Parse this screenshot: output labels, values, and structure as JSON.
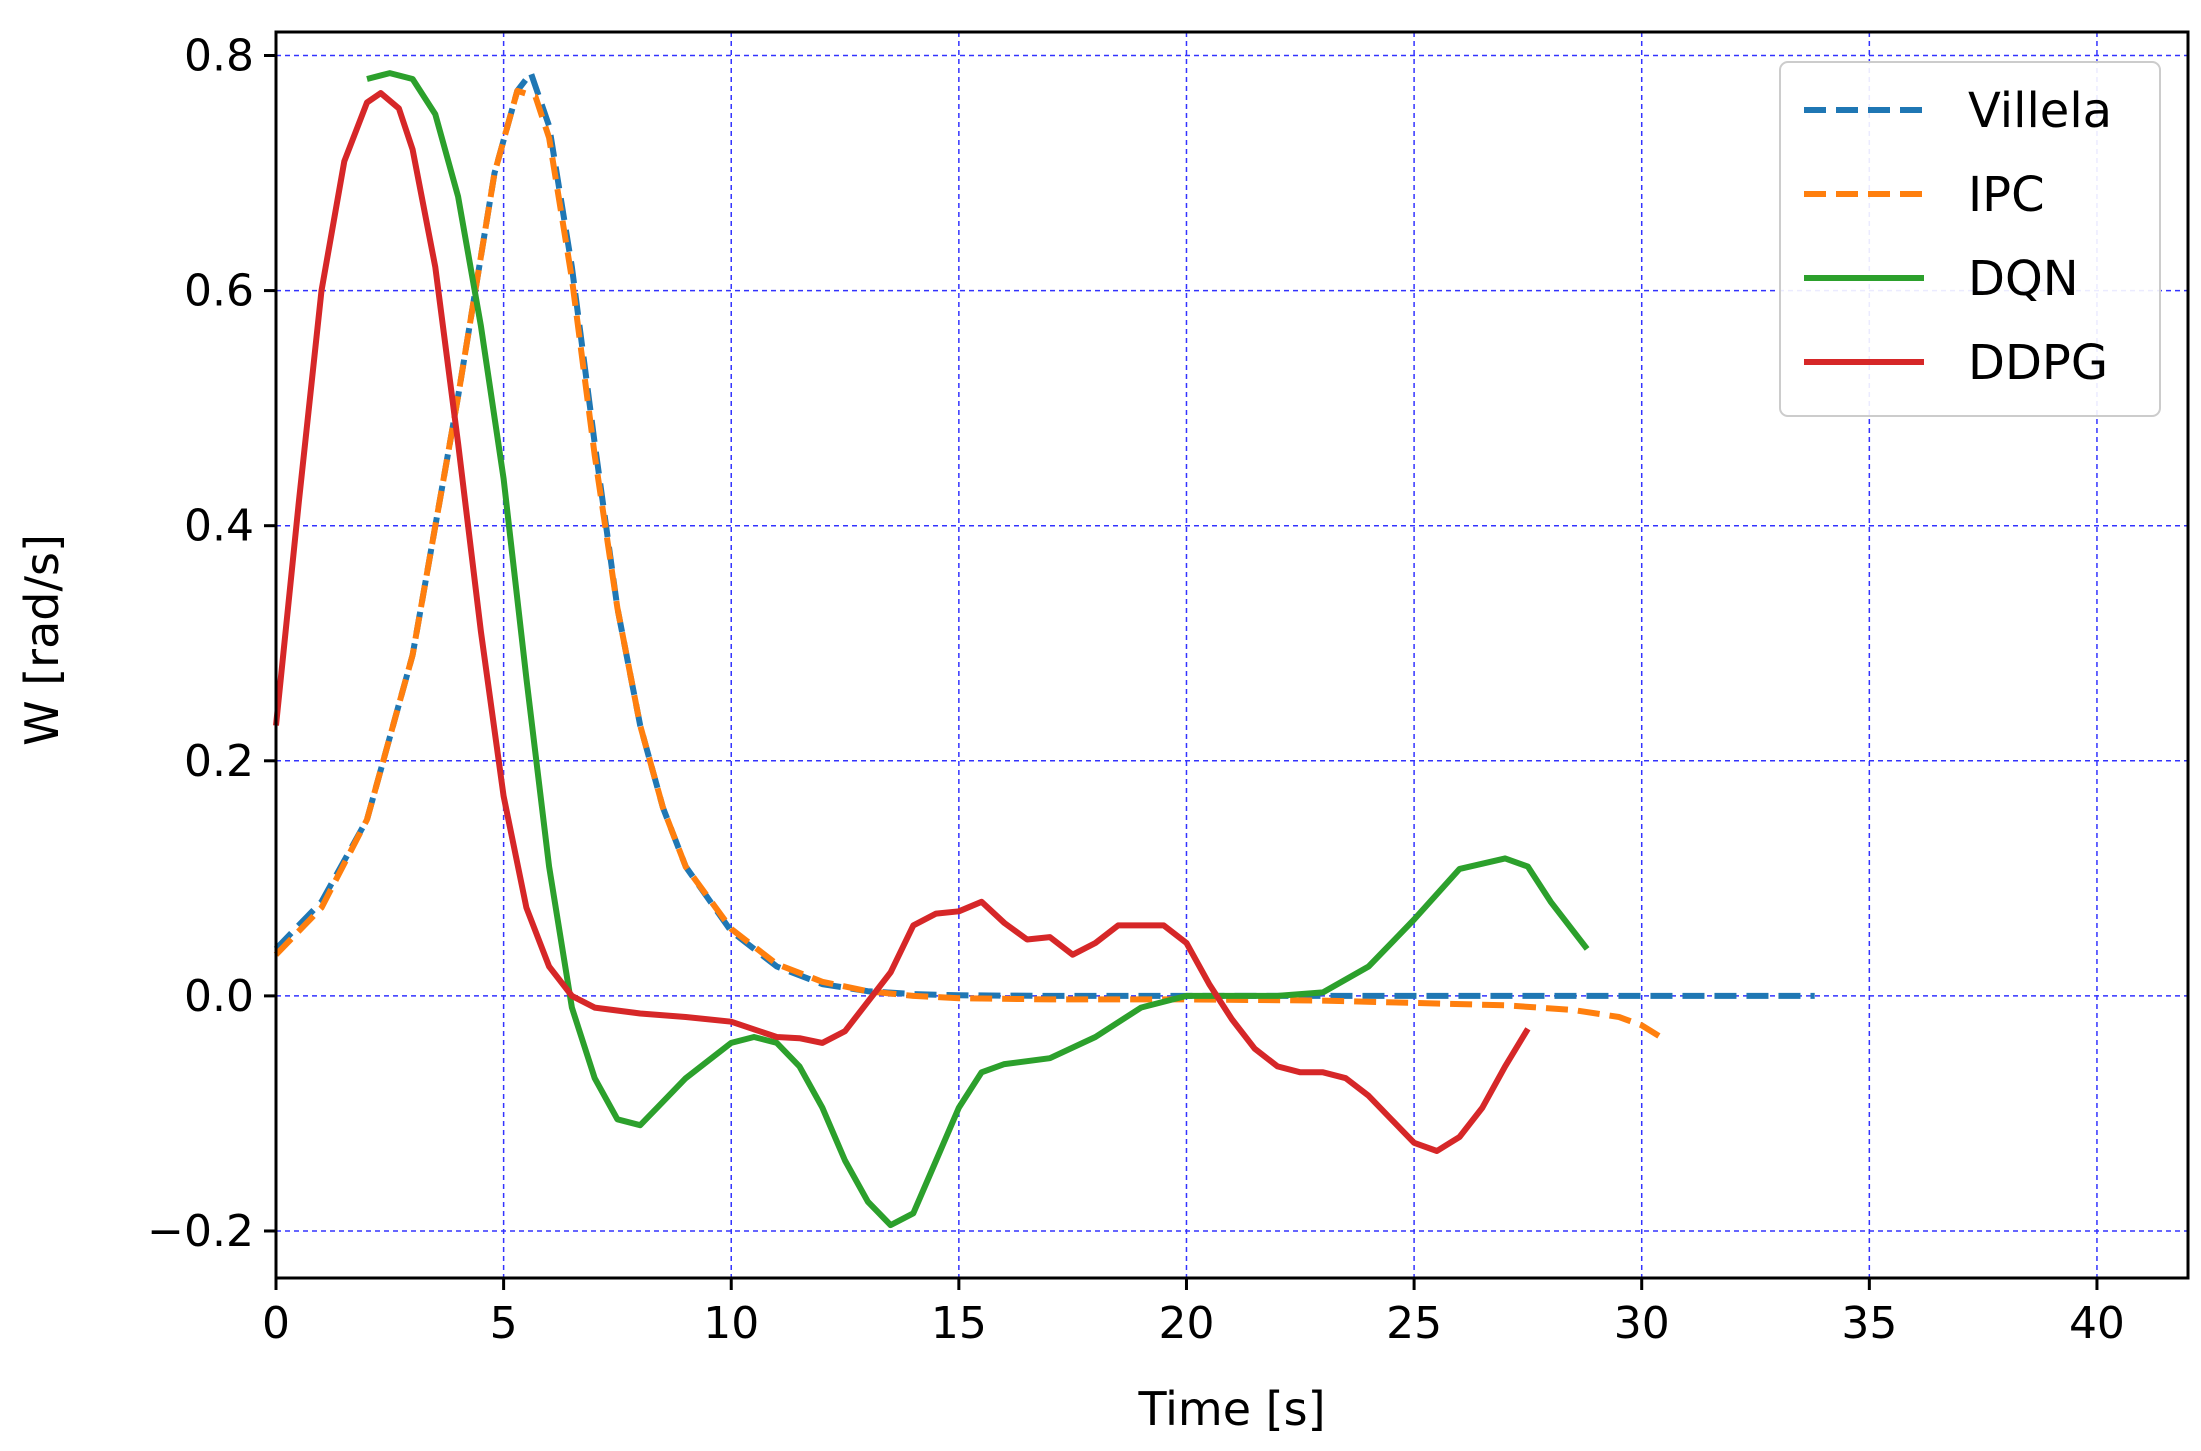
{
  "chart_data": {
    "type": "line",
    "xlabel": "Time [s]",
    "ylabel": "W [rad/s]",
    "xlim": [
      0,
      42
    ],
    "ylim": [
      -0.24,
      0.82
    ],
    "xticks": [
      0,
      5,
      10,
      15,
      20,
      25,
      30,
      35,
      40
    ],
    "xtick_labels": [
      "0",
      "5",
      "10",
      "15",
      "20",
      "25",
      "30",
      "35",
      "40"
    ],
    "yticks": [
      -0.2,
      0.0,
      0.2,
      0.4,
      0.6,
      0.8
    ],
    "ytick_labels": [
      "−0.2",
      "0.0",
      "0.2",
      "0.4",
      "0.6",
      "0.8"
    ],
    "grid": true,
    "legend_position": "top-right",
    "series": [
      {
        "name": "Villela",
        "color": "#1f77b4",
        "style": "dashed",
        "points": [
          [
            0,
            0.04
          ],
          [
            1,
            0.08
          ],
          [
            2,
            0.15
          ],
          [
            3,
            0.29
          ],
          [
            4,
            0.51
          ],
          [
            4.8,
            0.7
          ],
          [
            5.3,
            0.77
          ],
          [
            5.6,
            0.785
          ],
          [
            6,
            0.74
          ],
          [
            6.5,
            0.62
          ],
          [
            7,
            0.47
          ],
          [
            7.5,
            0.33
          ],
          [
            8,
            0.23
          ],
          [
            8.5,
            0.16
          ],
          [
            9,
            0.11
          ],
          [
            10,
            0.055
          ],
          [
            11,
            0.025
          ],
          [
            12,
            0.01
          ],
          [
            13,
            0.004
          ],
          [
            14,
            0.0015
          ],
          [
            15,
            0.0005
          ],
          [
            17,
            0.0
          ],
          [
            20,
            0.0
          ],
          [
            25,
            0.0
          ],
          [
            30,
            0.0
          ],
          [
            33.8,
            0.0
          ]
        ]
      },
      {
        "name": "IPC",
        "color": "#ff7f0e",
        "style": "dashed",
        "points": [
          [
            0,
            0.035
          ],
          [
            1,
            0.075
          ],
          [
            2,
            0.15
          ],
          [
            3,
            0.29
          ],
          [
            4,
            0.51
          ],
          [
            4.8,
            0.7
          ],
          [
            5.3,
            0.77
          ],
          [
            5.7,
            0.765
          ],
          [
            6,
            0.73
          ],
          [
            6.5,
            0.61
          ],
          [
            7,
            0.46
          ],
          [
            7.5,
            0.33
          ],
          [
            8,
            0.23
          ],
          [
            8.5,
            0.16
          ],
          [
            9,
            0.11
          ],
          [
            10,
            0.057
          ],
          [
            11,
            0.027
          ],
          [
            12,
            0.012
          ],
          [
            13,
            0.004
          ],
          [
            14,
            0.0
          ],
          [
            15,
            -0.002
          ],
          [
            17,
            -0.003
          ],
          [
            20,
            -0.003
          ],
          [
            23,
            -0.004
          ],
          [
            25,
            -0.006
          ],
          [
            27,
            -0.008
          ],
          [
            28.5,
            -0.012
          ],
          [
            29.5,
            -0.018
          ],
          [
            30,
            -0.025
          ],
          [
            30.5,
            -0.037
          ]
        ]
      },
      {
        "name": "DQN",
        "color": "#2ca02c",
        "style": "solid",
        "points": [
          [
            2,
            0.78
          ],
          [
            2.5,
            0.785
          ],
          [
            3,
            0.78
          ],
          [
            3.5,
            0.75
          ],
          [
            4,
            0.68
          ],
          [
            4.5,
            0.57
          ],
          [
            5,
            0.44
          ],
          [
            5.5,
            0.27
          ],
          [
            6,
            0.11
          ],
          [
            6.5,
            -0.01
          ],
          [
            7,
            -0.07
          ],
          [
            7.5,
            -0.105
          ],
          [
            8,
            -0.11
          ],
          [
            8.5,
            -0.09
          ],
          [
            9,
            -0.07
          ],
          [
            9.5,
            -0.055
          ],
          [
            10,
            -0.04
          ],
          [
            10.5,
            -0.035
          ],
          [
            11,
            -0.04
          ],
          [
            11.5,
            -0.06
          ],
          [
            12,
            -0.095
          ],
          [
            12.5,
            -0.14
          ],
          [
            13,
            -0.175
          ],
          [
            13.5,
            -0.195
          ],
          [
            14,
            -0.185
          ],
          [
            14.5,
            -0.14
          ],
          [
            15,
            -0.095
          ],
          [
            15.5,
            -0.065
          ],
          [
            16,
            -0.058
          ],
          [
            17,
            -0.053
          ],
          [
            18,
            -0.035
          ],
          [
            19,
            -0.01
          ],
          [
            20,
            0.0
          ],
          [
            21,
            0.0
          ],
          [
            22,
            0.0
          ],
          [
            23,
            0.003
          ],
          [
            24,
            0.025
          ],
          [
            25,
            0.065
          ],
          [
            26,
            0.108
          ],
          [
            27,
            0.117
          ],
          [
            27.5,
            0.11
          ],
          [
            28,
            0.08
          ],
          [
            28.8,
            0.04
          ]
        ]
      },
      {
        "name": "DDPG",
        "color": "#d62728",
        "style": "solid",
        "points": [
          [
            0,
            0.23
          ],
          [
            0.5,
            0.42
          ],
          [
            1,
            0.6
          ],
          [
            1.5,
            0.71
          ],
          [
            2,
            0.76
          ],
          [
            2.3,
            0.768
          ],
          [
            2.7,
            0.755
          ],
          [
            3,
            0.72
          ],
          [
            3.5,
            0.62
          ],
          [
            4,
            0.47
          ],
          [
            4.5,
            0.31
          ],
          [
            5,
            0.17
          ],
          [
            5.5,
            0.075
          ],
          [
            6,
            0.025
          ],
          [
            6.5,
            0.0
          ],
          [
            7,
            -0.01
          ],
          [
            8,
            -0.015
          ],
          [
            9,
            -0.018
          ],
          [
            10,
            -0.022
          ],
          [
            11,
            -0.035
          ],
          [
            11.5,
            -0.036
          ],
          [
            12,
            -0.04
          ],
          [
            12.5,
            -0.03
          ],
          [
            13,
            -0.005
          ],
          [
            13.5,
            0.02
          ],
          [
            14,
            0.06
          ],
          [
            14.5,
            0.07
          ],
          [
            15,
            0.072
          ],
          [
            15.5,
            0.08
          ],
          [
            16,
            0.062
          ],
          [
            16.5,
            0.048
          ],
          [
            17,
            0.05
          ],
          [
            17.5,
            0.035
          ],
          [
            18,
            0.045
          ],
          [
            18.5,
            0.06
          ],
          [
            19,
            0.06
          ],
          [
            19.5,
            0.06
          ],
          [
            20,
            0.045
          ],
          [
            20.5,
            0.01
          ],
          [
            21,
            -0.02
          ],
          [
            21.5,
            -0.045
          ],
          [
            22,
            -0.06
          ],
          [
            22.5,
            -0.065
          ],
          [
            23,
            -0.065
          ],
          [
            23.5,
            -0.07
          ],
          [
            24,
            -0.085
          ],
          [
            24.5,
            -0.105
          ],
          [
            25,
            -0.125
          ],
          [
            25.5,
            -0.132
          ],
          [
            26,
            -0.12
          ],
          [
            26.5,
            -0.095
          ],
          [
            27,
            -0.06
          ],
          [
            27.5,
            -0.028
          ]
        ]
      }
    ]
  }
}
